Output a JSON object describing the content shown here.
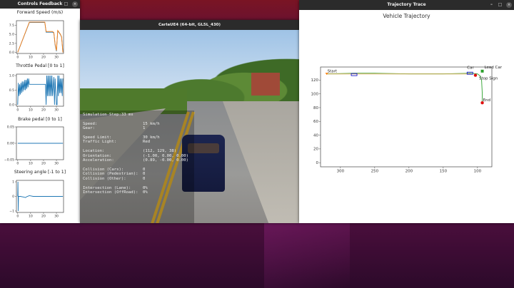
{
  "controls_window": {
    "title": "Controls Feedback",
    "buttons": {
      "minimize": "–",
      "maximize": "□",
      "close": "×"
    }
  },
  "carla_window": {
    "title": "CarlaUE4 (64-bit, GL5L_430)"
  },
  "hud": {
    "simulation_step": {
      "label": "Simulation Step:",
      "value": "33 ms"
    },
    "rows1": [
      {
        "k": "Speed:",
        "v": "15 km/h"
      },
      {
        "k": "Gear:",
        "v": "1"
      }
    ],
    "rows2": [
      {
        "k": "Speed Limit:",
        "v": "30 km/h"
      },
      {
        "k": "Traffic Light:",
        "v": "Red"
      }
    ],
    "rows3": [
      {
        "k": "Location:",
        "v": "(112, 129, 38)"
      },
      {
        "k": "Orientation:",
        "v": "(-1.00, 0.00, 0.00)"
      },
      {
        "k": "Acceleration:",
        "v": "(0.89, -0.00, 0.00)"
      }
    ],
    "rows4": [
      {
        "k": "Collision (Cars):",
        "v": "0"
      },
      {
        "k": "Collision (Pedestrian):",
        "v": "0"
      },
      {
        "k": "Collision (Other):",
        "v": "0"
      }
    ],
    "rows5": [
      {
        "k": "Intersection (Lane):",
        "v": "0%"
      },
      {
        "k": "Intersection (OffRoad):",
        "v": "0%"
      }
    ]
  },
  "trajectory_window": {
    "title": "Trajectory Trace",
    "buttons": {
      "minimize": "–",
      "maximize": "□",
      "close": "×"
    }
  },
  "chart_data": [
    {
      "type": "line",
      "title": "Forward Speed (m/s)",
      "xlim": [
        -1,
        35.5
      ],
      "ylim": [
        -0.3,
        8.8
      ],
      "xticks": [
        0,
        10,
        20,
        30
      ],
      "yticks": [
        0.0,
        2.5,
        5.0,
        7.5
      ],
      "ytick_labels": [
        "0.0",
        "2.5",
        "5.0",
        "7.5"
      ],
      "series": [
        {
          "color": "#1f77b4",
          "x": [
            0,
            9,
            21,
            22,
            27,
            28,
            29,
            30,
            31,
            33,
            34,
            35
          ],
          "y": [
            0,
            8.3,
            8.3,
            5.6,
            5.6,
            5.4,
            2,
            0.3,
            6,
            5,
            4.2,
            0
          ]
        },
        {
          "color": "#ff7f0e",
          "x": [
            0,
            9,
            21,
            22,
            27,
            28,
            29,
            30,
            31,
            33,
            34,
            35
          ],
          "y": [
            0,
            8.4,
            8.4,
            5.8,
            5.8,
            5.5,
            2.3,
            0.5,
            6.1,
            5.1,
            4.3,
            0
          ]
        }
      ]
    },
    {
      "type": "line",
      "title": "Throttle Pedal [0 to 1]",
      "xlim": [
        -1,
        35.5
      ],
      "ylim": [
        -0.05,
        1.05
      ],
      "xticks": [
        0,
        10,
        20,
        30
      ],
      "yticks": [
        0,
        0.5,
        1.0
      ],
      "ytick_labels": [
        "0.0",
        "0.5",
        "1.0"
      ],
      "series": [
        {
          "color": "#1f77b4",
          "x": [
            0,
            0.5,
            1,
            1.5,
            2,
            2.5,
            3,
            3.5,
            4,
            4.5,
            5,
            5.5,
            6,
            6.5,
            7,
            7.5,
            8,
            8.5,
            9,
            21.5,
            22,
            22.5,
            23,
            23.5,
            24,
            24.5,
            25,
            25.5,
            26,
            26.5,
            27,
            28,
            28.5,
            29,
            30,
            30.5,
            31,
            31.5,
            32,
            32.5,
            33,
            33.5,
            34,
            34.5,
            35
          ],
          "y": [
            0,
            0.75,
            0.3,
            0.7,
            0.35,
            0.75,
            0.4,
            0.8,
            0.45,
            0.8,
            0.5,
            0.85,
            0.5,
            0.85,
            0.55,
            0.9,
            0.6,
            0.9,
            0.7,
            0.7,
            0,
            1,
            0.3,
            1,
            0.3,
            1,
            0.3,
            1,
            0.3,
            1,
            0.3,
            0.95,
            0,
            0.9,
            0,
            0,
            1,
            0.3,
            1,
            0.4,
            0.9,
            0.4,
            0.9,
            0.3,
            0.9
          ]
        }
      ]
    },
    {
      "type": "line",
      "title": "Brake pedal [0 to 1]",
      "xlim": [
        -1,
        35.5
      ],
      "ylim": [
        -0.05,
        0.05
      ],
      "xticks": [
        0,
        10,
        20,
        30
      ],
      "yticks": [
        -0.05,
        0,
        0.05
      ],
      "ytick_labels": [
        "−0.05",
        "0.00",
        "0.05"
      ],
      "series": [
        {
          "color": "#1f77b4",
          "x": [
            0,
            35
          ],
          "y": [
            0,
            0
          ]
        }
      ]
    },
    {
      "type": "line",
      "title": "Steering angle [-1 to 1]",
      "xlim": [
        -1,
        35.5
      ],
      "ylim": [
        -1.1,
        1.1
      ],
      "xticks": [
        0,
        10,
        20,
        30
      ],
      "yticks": [
        -1,
        0,
        1
      ],
      "ytick_labels": [
        "−1",
        "0",
        "1"
      ],
      "series": [
        {
          "color": "#1f77b4",
          "x": [
            0,
            0.2,
            0.4,
            0.6,
            2,
            5,
            6,
            7,
            9,
            12,
            20,
            35
          ],
          "y": [
            0,
            1,
            -1,
            0,
            0,
            -0.05,
            -0.08,
            -0.02,
            0.05,
            0,
            0,
            0
          ]
        }
      ]
    },
    {
      "type": "line",
      "title": "Vehicle Trajectory",
      "xlim": [
        329,
        79
      ],
      "ylim": [
        -6,
        139
      ],
      "xticks": [
        300,
        250,
        200,
        150,
        100
      ],
      "yticks": [
        0,
        20,
        40,
        60,
        80,
        100,
        120
      ],
      "grid": false,
      "series": [
        {
          "color": "#2ca02c",
          "x": [
            320,
            280,
            250,
            200,
            150,
            110,
            100,
            96,
            94,
            93,
            93
          ],
          "y": [
            129,
            130,
            130,
            129,
            129,
            130,
            129,
            126,
            120,
            100,
            87
          ]
        },
        {
          "color": "#d8b060",
          "x": [
            320,
            250,
            150,
            110
          ],
          "y": [
            129,
            129,
            129,
            129
          ]
        }
      ],
      "annotations": [
        {
          "text": "Start",
          "x": 320,
          "y": 129,
          "color": "#ff7f0e",
          "marker": "triangle"
        },
        {
          "text": "",
          "x": 280,
          "y": 128,
          "color": "#0000cc",
          "marker": "box"
        },
        {
          "text": "Car",
          "x": 111,
          "y": 130,
          "color": "#0000cc",
          "marker": "box"
        },
        {
          "text": "Stop Sign",
          "x": 103,
          "y": 127,
          "color": "#e01010",
          "marker": "circle"
        },
        {
          "text": "Lead Car",
          "x": 93,
          "y": 133,
          "color": "#2ca02c",
          "marker": "square"
        },
        {
          "text": "End",
          "x": 93,
          "y": 87,
          "color": "#e01010",
          "marker": "circle"
        }
      ]
    }
  ]
}
